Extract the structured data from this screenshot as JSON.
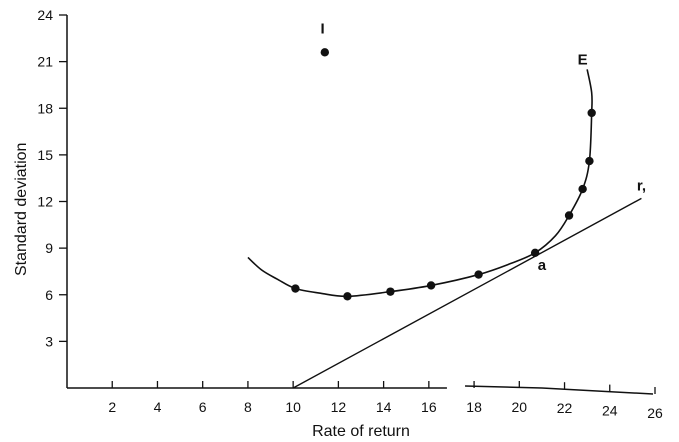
{
  "chart_data": {
    "type": "scatter",
    "title": "",
    "xlabel": "Rate of return",
    "ylabel": "Standard deviation",
    "xlim": [
      0,
      26
    ],
    "ylim": [
      0,
      24
    ],
    "x_ticks": [
      "2",
      "4",
      "6",
      "8",
      "10",
      "12",
      "14",
      "16",
      "18",
      "20",
      "22",
      "24",
      "26"
    ],
    "y_ticks": [
      "3",
      "6",
      "9",
      "12",
      "15",
      "18",
      "21",
      "24"
    ],
    "grid": false,
    "series": [
      {
        "kind": "points",
        "points": [
          {
            "x": 10.1,
            "y": 6.4
          },
          {
            "x": 12.4,
            "y": 5.9
          },
          {
            "x": 14.3,
            "y": 6.2
          },
          {
            "x": 16.1,
            "y": 6.6
          },
          {
            "x": 18.2,
            "y": 7.3
          },
          {
            "x": 20.7,
            "y": 8.7
          },
          {
            "x": 22.2,
            "y": 11.1
          },
          {
            "x": 22.8,
            "y": 12.8
          },
          {
            "x": 23.1,
            "y": 14.6
          },
          {
            "x": 23.2,
            "y": 17.7
          }
        ]
      },
      {
        "kind": "curve",
        "points": [
          {
            "x": 8.0,
            "y": 8.4
          },
          {
            "x": 8.6,
            "y": 7.6
          },
          {
            "x": 9.3,
            "y": 7.0
          },
          {
            "x": 10.1,
            "y": 6.4
          },
          {
            "x": 11.2,
            "y": 6.1
          },
          {
            "x": 12.4,
            "y": 5.9
          },
          {
            "x": 14.3,
            "y": 6.2
          },
          {
            "x": 16.1,
            "y": 6.6
          },
          {
            "x": 18.2,
            "y": 7.3
          },
          {
            "x": 19.6,
            "y": 8.0
          },
          {
            "x": 20.7,
            "y": 8.7
          },
          {
            "x": 21.6,
            "y": 9.8
          },
          {
            "x": 22.2,
            "y": 11.1
          },
          {
            "x": 22.8,
            "y": 12.8
          },
          {
            "x": 23.1,
            "y": 14.6
          },
          {
            "x": 23.2,
            "y": 17.7
          },
          {
            "x": 23.2,
            "y": 19.0
          },
          {
            "x": 23.0,
            "y": 20.5
          }
        ]
      },
      {
        "kind": "line",
        "points": [
          {
            "x": 10.0,
            "y": 0.0
          },
          {
            "x": 25.4,
            "y": 12.2
          }
        ]
      }
    ],
    "outlier": {
      "x": 11.4,
      "y": 21.6
    },
    "annotations": [
      {
        "text": "I",
        "x": 11.3,
        "y": 22.8
      },
      {
        "text": "E",
        "x": 22.8,
        "y": 20.8
      },
      {
        "text": "a",
        "x": 21.0,
        "y": 7.6
      },
      {
        "text": "r,",
        "x": 25.4,
        "y": 12.7
      }
    ]
  }
}
